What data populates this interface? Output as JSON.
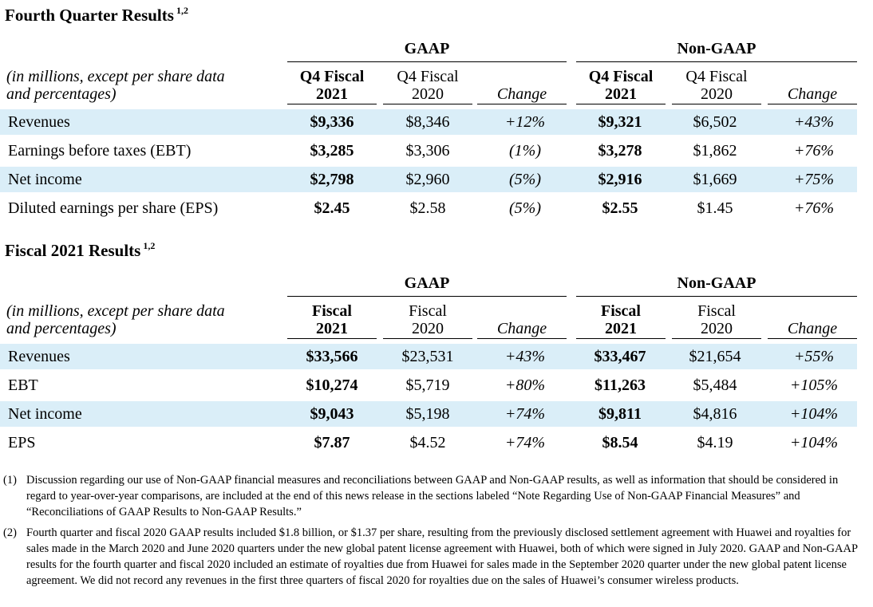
{
  "q4": {
    "title": "Fourth Quarter Results",
    "title_sup": "1,2",
    "gaap_label": "GAAP",
    "nongaap_label": "Non-GAAP",
    "desc_line1": "(in millions, except per share data",
    "desc_line2": "and percentages)",
    "col1_line1": "Q4 Fiscal",
    "col1_line2": "2021",
    "col2_line1": "Q4 Fiscal",
    "col2_line2": "2020",
    "change_label": "Change",
    "rows": [
      {
        "label": "Revenues",
        "g21": "$9,336",
        "g20": "$8,346",
        "gchg": "+12%",
        "n21": "$9,321",
        "n20": "$6,502",
        "nchg": "+43%"
      },
      {
        "label": "Earnings before taxes (EBT)",
        "g21": "$3,285",
        "g20": "$3,306",
        "gchg": "(1%)",
        "n21": "$3,278",
        "n20": "$1,862",
        "nchg": "+76%"
      },
      {
        "label": "Net income",
        "g21": "$2,798",
        "g20": "$2,960",
        "gchg": "(5%)",
        "n21": "$2,916",
        "n20": "$1,669",
        "nchg": "+75%"
      },
      {
        "label": "Diluted earnings per share (EPS)",
        "g21": "$2.45",
        "g20": "$2.58",
        "gchg": "(5%)",
        "n21": "$2.55",
        "n20": "$1.45",
        "nchg": "+76%"
      }
    ]
  },
  "fy": {
    "title": "Fiscal 2021 Results",
    "title_sup": "1,2",
    "gaap_label": "GAAP",
    "nongaap_label": "Non-GAAP",
    "desc_line1": "(in millions, except per share data",
    "desc_line2": "and percentages)",
    "col1_line1": "Fiscal",
    "col1_line2": "2021",
    "col2_line1": "Fiscal",
    "col2_line2": "2020",
    "change_label": "Change",
    "rows": [
      {
        "label": "Revenues",
        "g21": "$33,566",
        "g20": "$23,531",
        "gchg": "+43%",
        "n21": "$33,467",
        "n20": "$21,654",
        "nchg": "+55%"
      },
      {
        "label": "EBT",
        "g21": "$10,274",
        "g20": "$5,719",
        "gchg": "+80%",
        "n21": "$11,263",
        "n20": "$5,484",
        "nchg": "+105%"
      },
      {
        "label": "Net income",
        "g21": "$9,043",
        "g20": "$5,198",
        "gchg": "+74%",
        "n21": "$9,811",
        "n20": "$4,816",
        "nchg": "+104%"
      },
      {
        "label": "EPS",
        "g21": "$7.87",
        "g20": "$4.52",
        "gchg": "+74%",
        "n21": "$8.54",
        "n20": "$4.19",
        "nchg": "+104%"
      }
    ]
  },
  "notes": [
    {
      "marker": "(1)",
      "text": "Discussion regarding our use of Non-GAAP financial measures and reconciliations between GAAP and Non-GAAP results, as well as information that should be considered in regard to year-over-year comparisons, are included at the end of this news release in the sections labeled “Note Regarding Use of Non-GAAP Financial Measures” and “Reconciliations of GAAP Results to Non-GAAP Results.”"
    },
    {
      "marker": "(2)",
      "text": "Fourth quarter and fiscal 2020 GAAP results included $1.8 billion, or $1.37 per share, resulting from the previously disclosed settlement agreement with Huawei and royalties for sales made in the March 2020 and June 2020 quarters under the new global patent license agreement with Huawei, both of which were signed in July 2020.  GAAP and Non-GAAP results for the fourth quarter and fiscal 2020 included an estimate of royalties due from Huawei for sales made in the September 2020 quarter under the new global patent license agreement.  We did not record any revenues in the first three quarters of fiscal 2020 for royalties due on the sales of Huawei’s consumer wireless products."
    }
  ]
}
